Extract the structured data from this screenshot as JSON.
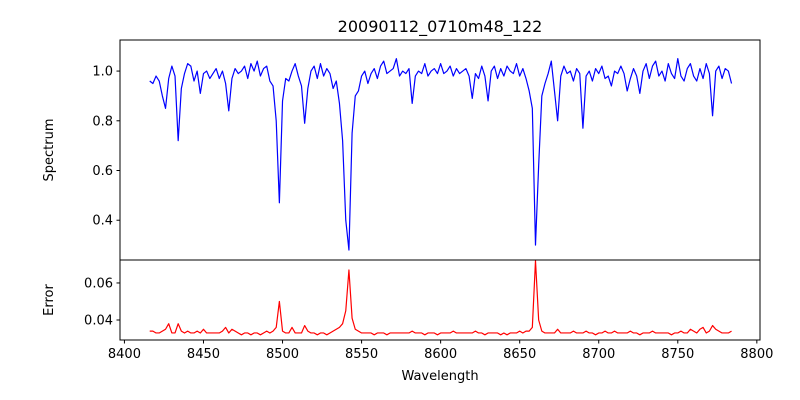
{
  "chart_data": [
    {
      "type": "line",
      "title": "20090112_0710m48_122",
      "xlabel": "",
      "ylabel": "Spectrum",
      "xlim": [
        8397.2,
        8802
      ],
      "ylim": [
        0.24,
        1.125
      ],
      "yticks": [
        0.4,
        0.6,
        0.8,
        1.0
      ],
      "ytick_labels": [
        "0.4",
        "0.6",
        "0.8",
        "1.0"
      ],
      "grid": false,
      "series": [
        {
          "name": "Spectrum",
          "color": "#0000ff",
          "x_start": 8416,
          "x_step": 2,
          "values": [
            0.96,
            0.95,
            0.98,
            0.96,
            0.9,
            0.85,
            0.97,
            1.02,
            0.98,
            0.72,
            0.93,
            0.99,
            1.03,
            1.02,
            0.96,
            1.0,
            0.91,
            0.99,
            1.0,
            0.97,
            0.99,
            1.01,
            0.97,
            1.0,
            0.95,
            0.84,
            0.97,
            1.01,
            0.99,
            1.0,
            1.02,
            0.97,
            1.03,
            1.0,
            1.04,
            0.98,
            1.01,
            1.02,
            0.96,
            0.94,
            0.8,
            0.47,
            0.88,
            0.97,
            0.96,
            1.0,
            1.03,
            0.98,
            0.94,
            0.79,
            0.93,
            1.0,
            1.02,
            0.97,
            1.03,
            0.98,
            1.01,
            0.99,
            0.93,
            0.96,
            0.87,
            0.72,
            0.4,
            0.28,
            0.75,
            0.9,
            0.92,
            0.98,
            1.0,
            0.95,
            0.99,
            1.01,
            0.97,
            1.02,
            1.04,
            0.99,
            1.0,
            1.01,
            1.05,
            0.98,
            1.0,
            0.99,
            1.01,
            0.87,
            0.98,
            1.0,
            0.99,
            1.03,
            0.98,
            1.0,
            1.01,
            0.99,
            1.03,
            0.99,
            1.0,
            1.02,
            0.98,
            1.01,
            0.99,
            1.0,
            1.01,
            0.98,
            0.89,
            0.99,
            0.97,
            1.02,
            0.98,
            0.88,
            1.0,
            1.02,
            0.97,
            1.01,
            0.98,
            1.02,
            1.0,
            0.99,
            1.03,
            0.98,
            1.01,
            0.97,
            0.92,
            0.85,
            0.3,
            0.62,
            0.9,
            0.95,
            0.99,
            1.04,
            0.92,
            0.8,
            0.98,
            1.02,
            0.99,
            1.0,
            0.96,
            1.01,
            0.99,
            0.77,
            0.98,
            1.0,
            0.96,
            1.01,
            0.99,
            1.02,
            0.97,
            0.98,
            0.94,
            1.0,
            0.99,
            1.02,
            0.99,
            0.92,
            0.97,
            1.01,
            0.98,
            0.91,
            1.0,
            1.03,
            0.97,
            1.02,
            1.04,
            0.98,
            1.0,
            0.96,
            1.03,
            0.99,
            0.97,
            1.05,
            0.98,
            0.96,
            1.01,
            1.03,
            0.98,
            0.96,
            1.01,
            0.97,
            1.03,
            0.99,
            0.82,
            1.0,
            1.02,
            0.97,
            1.01,
            1.0,
            0.95
          ]
        }
      ]
    },
    {
      "type": "line",
      "title": "",
      "xlabel": "Wavelength",
      "ylabel": "Error",
      "xlim": [
        8397.2,
        8802
      ],
      "ylim": [
        0.0292,
        0.0724
      ],
      "xticks": [
        8400,
        8450,
        8500,
        8550,
        8600,
        8650,
        8700,
        8750,
        8800
      ],
      "xtick_labels": [
        "8400",
        "8450",
        "8500",
        "8550",
        "8600",
        "8650",
        "8700",
        "8750",
        "8800"
      ],
      "yticks": [
        0.04,
        0.06
      ],
      "ytick_labels": [
        "0.04",
        "0.06"
      ],
      "grid": false,
      "series": [
        {
          "name": "Error",
          "color": "#ff0000",
          "x_start": 8416,
          "x_step": 2,
          "values": [
            0.034,
            0.034,
            0.033,
            0.033,
            0.034,
            0.035,
            0.038,
            0.033,
            0.033,
            0.038,
            0.034,
            0.033,
            0.034,
            0.033,
            0.033,
            0.034,
            0.033,
            0.035,
            0.033,
            0.033,
            0.033,
            0.033,
            0.033,
            0.034,
            0.036,
            0.033,
            0.035,
            0.034,
            0.033,
            0.032,
            0.033,
            0.033,
            0.032,
            0.033,
            0.033,
            0.032,
            0.033,
            0.034,
            0.033,
            0.034,
            0.036,
            0.05,
            0.034,
            0.033,
            0.033,
            0.036,
            0.033,
            0.033,
            0.033,
            0.037,
            0.034,
            0.033,
            0.033,
            0.032,
            0.033,
            0.033,
            0.032,
            0.033,
            0.034,
            0.035,
            0.036,
            0.038,
            0.045,
            0.067,
            0.041,
            0.035,
            0.034,
            0.033,
            0.033,
            0.033,
            0.033,
            0.032,
            0.033,
            0.033,
            0.033,
            0.032,
            0.033,
            0.033,
            0.033,
            0.033,
            0.033,
            0.033,
            0.033,
            0.034,
            0.033,
            0.033,
            0.033,
            0.032,
            0.033,
            0.033,
            0.033,
            0.032,
            0.033,
            0.033,
            0.033,
            0.033,
            0.034,
            0.033,
            0.033,
            0.033,
            0.033,
            0.033,
            0.033,
            0.034,
            0.033,
            0.033,
            0.032,
            0.033,
            0.033,
            0.033,
            0.033,
            0.032,
            0.033,
            0.032,
            0.033,
            0.033,
            0.033,
            0.034,
            0.033,
            0.034,
            0.034,
            0.036,
            0.072,
            0.04,
            0.034,
            0.033,
            0.033,
            0.033,
            0.033,
            0.035,
            0.033,
            0.033,
            0.033,
            0.033,
            0.034,
            0.033,
            0.033,
            0.033,
            0.034,
            0.033,
            0.033,
            0.032,
            0.033,
            0.033,
            0.034,
            0.033,
            0.033,
            0.034,
            0.033,
            0.033,
            0.033,
            0.033,
            0.034,
            0.033,
            0.033,
            0.032,
            0.033,
            0.033,
            0.033,
            0.034,
            0.033,
            0.033,
            0.033,
            0.033,
            0.033,
            0.032,
            0.033,
            0.033,
            0.034,
            0.033,
            0.033,
            0.035,
            0.034,
            0.033,
            0.035,
            0.036,
            0.033,
            0.034,
            0.037,
            0.035,
            0.034,
            0.033,
            0.033,
            0.033,
            0.034
          ]
        }
      ]
    }
  ]
}
